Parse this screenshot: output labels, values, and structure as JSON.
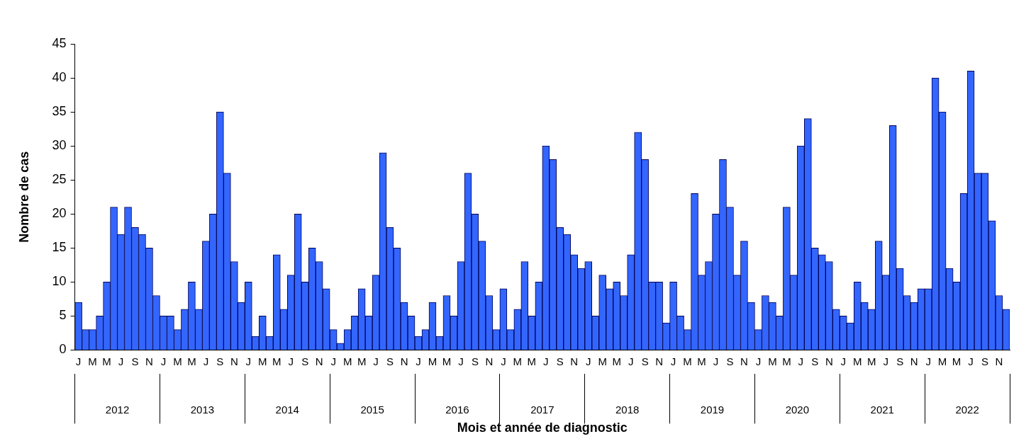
{
  "chart_data": {
    "type": "bar",
    "x_label": "Mois et année de diagnostic",
    "y_label": "Nombre de cas",
    "categories": [
      "J",
      null,
      "M",
      null,
      "M",
      null,
      "J",
      null,
      "S",
      null,
      "N",
      null,
      "J",
      null,
      "M",
      null,
      "M",
      null,
      "J",
      null,
      "S",
      null,
      "N",
      null,
      "J",
      null,
      "M",
      null,
      "M",
      null,
      "J",
      null,
      "S",
      null,
      "N",
      null,
      "J",
      null,
      "M",
      null,
      "M",
      null,
      "J",
      null,
      "S",
      null,
      "N",
      null,
      "J",
      null,
      "M",
      null,
      "M",
      null,
      "J",
      null,
      "S",
      null,
      "N",
      null,
      "J",
      null,
      "M",
      null,
      "M",
      null,
      "J",
      null,
      "S",
      null,
      "N",
      null,
      "J",
      null,
      "M",
      null,
      "M",
      null,
      "J",
      null,
      "S",
      null,
      "N",
      null,
      "J",
      null,
      "M",
      null,
      "M",
      null,
      "J",
      null,
      "S",
      null,
      "N",
      null,
      "J",
      null,
      "M",
      null,
      "M",
      null,
      "J",
      null,
      "S",
      null,
      "N",
      null,
      "J",
      null,
      "M",
      null,
      "M",
      null,
      "J",
      null,
      "S",
      null,
      "N",
      null,
      "J",
      null,
      "M",
      null,
      "M",
      null,
      "J",
      null,
      "S",
      null,
      "N",
      null
    ],
    "category_groups": [
      "2012",
      "2013",
      "2014",
      "2015",
      "2016",
      "2017",
      "2018",
      "2019",
      "2020",
      "2021",
      "2022"
    ],
    "values": [
      7,
      3,
      3,
      5,
      10,
      21,
      17,
      21,
      18,
      17,
      15,
      8,
      5,
      5,
      3,
      6,
      10,
      6,
      16,
      20,
      35,
      26,
      13,
      7,
      10,
      2,
      5,
      2,
      14,
      6,
      11,
      20,
      10,
      15,
      13,
      9,
      3,
      1,
      3,
      5,
      9,
      5,
      11,
      29,
      18,
      15,
      7,
      5,
      2,
      3,
      7,
      2,
      8,
      5,
      13,
      26,
      20,
      16,
      8,
      3,
      9,
      3,
      6,
      13,
      5,
      10,
      30,
      28,
      18,
      17,
      14,
      12,
      13,
      5,
      11,
      9,
      10,
      8,
      14,
      32,
      28,
      10,
      10,
      4,
      10,
      5,
      3,
      23,
      11,
      13,
      20,
      28,
      21,
      11,
      16,
      7,
      3,
      8,
      7,
      5,
      21,
      11,
      30,
      34,
      15,
      14,
      13,
      6,
      5,
      4,
      10,
      7,
      6,
      16,
      11,
      33,
      12,
      8,
      7,
      9,
      9,
      40,
      35,
      12,
      10,
      23,
      41,
      26,
      26,
      19,
      8,
      6
    ],
    "color": "#3366ff",
    "ylim": [
      0,
      45
    ],
    "yticks": [
      0,
      5,
      10,
      15,
      20,
      25,
      30,
      35,
      40,
      45
    ],
    "grid": false
  }
}
